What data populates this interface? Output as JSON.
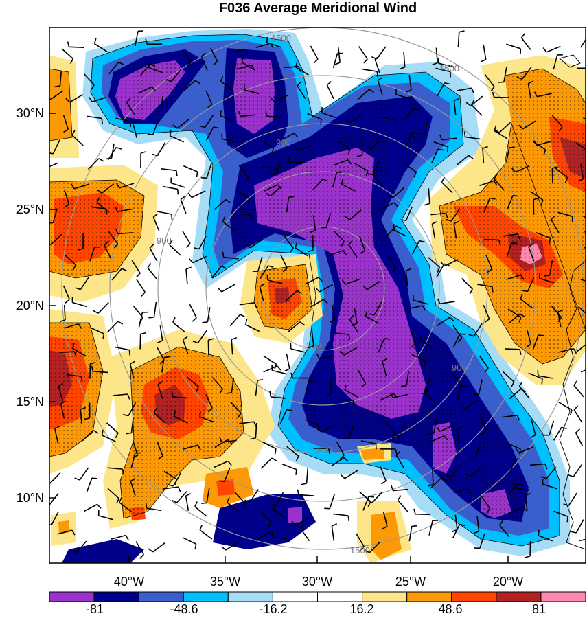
{
  "title": "F036 Average Meridional Wind",
  "lat_ticks": [
    "30°N",
    "25°N",
    "20°N",
    "15°N",
    "10°N"
  ],
  "lon_ticks": [
    "40°W",
    "35°W",
    "30°W",
    "25°W",
    "20°W"
  ],
  "range_rings": [
    "300",
    "900",
    "1500"
  ],
  "colorbar": {
    "colors": [
      "#9a33cc",
      "#00008b",
      "#3a5fcd",
      "#00bfff",
      "#a6dcf5",
      "#ffffff",
      "#ffffff",
      "#fde68a",
      "#fb9a06",
      "#ff4500",
      "#b22222",
      "#ff88b0"
    ],
    "labels": [
      "-81",
      "-48.6",
      "-16.2",
      "16.2",
      "48.6",
      "81"
    ]
  },
  "legend_colors": {
    "frame": "#000000",
    "ring": "#999999",
    "coast": "#000000"
  }
}
